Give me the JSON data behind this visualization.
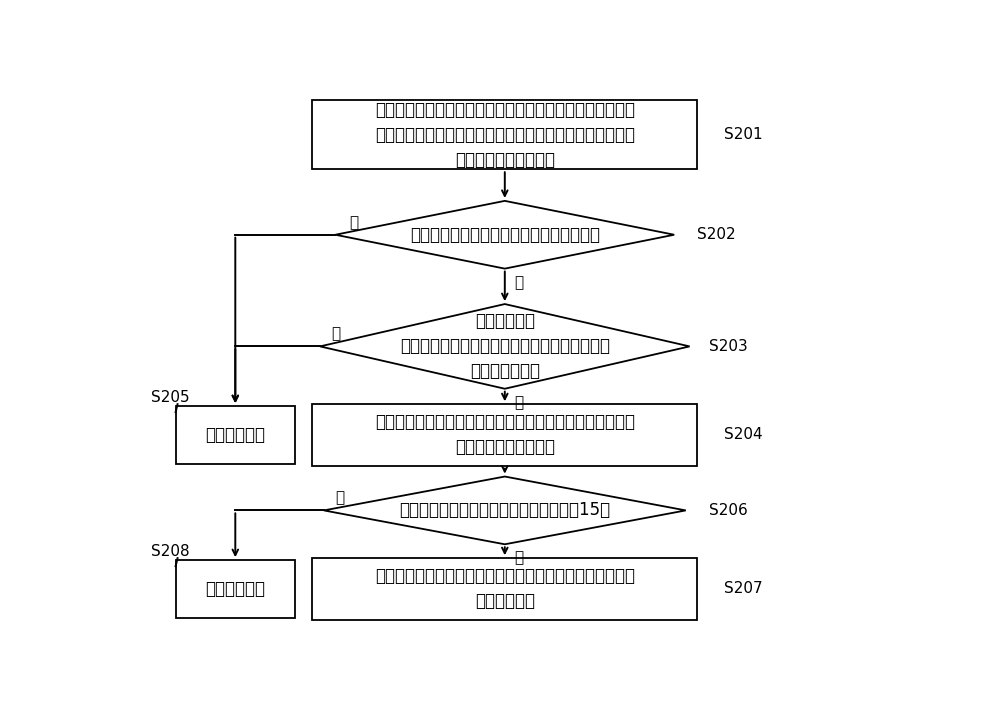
{
  "bg_color": "#ffffff",
  "line_color": "#000000",
  "text_color": "#000000",
  "fs_main": 12,
  "fs_label": 11,
  "fs_yn": 11,
  "S201_text": "当空调器处于制热循环时，获取所述空调器的制热时间、所\n述空调器的室外机进风温度、室外机出风温度以及所述进风\n温度与出风温度的温差",
  "S201_label": "S201",
  "S202_text": "判断制热时间是否大于预设的第一时间阈值",
  "S202_label": "S202",
  "S203_text": "判断温差小于\n或等于预设的温度阈值的持续时间是否大于预设\n的第二时间阈值",
  "S203_label": "S203",
  "S204_text": "控制所述空调器的四通阀的阀口进行切换，使所述空调器由\n制热循环转入化霜循环",
  "S204_label": "S204",
  "S205_text": "保持制热循环",
  "S205_label": "S205",
  "S206_text": "判断室外机的热交换器出口温度是否大于15度",
  "S206_label": "S206",
  "S207_text": "控制所述四通阀的阀口进行切换，使所述空调器由化霜循环\n转入制热循环",
  "S207_label": "S207",
  "S208_text": "保持化霜循环",
  "S208_label": "S208",
  "yes_text": "是",
  "no_text": "否"
}
